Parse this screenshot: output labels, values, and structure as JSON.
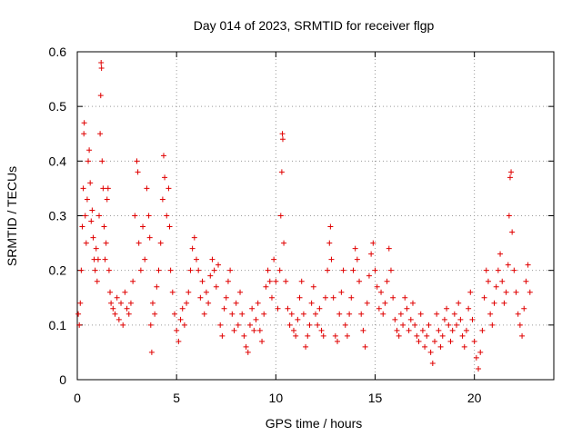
{
  "chart_data": {
    "type": "scatter",
    "title": "Day 014 of 2023, SRMTID for receiver flgp",
    "xlabel": "GPS time / hours",
    "ylabel": "SRMTID / TECUs",
    "xlim": [
      0,
      24
    ],
    "ylim": [
      0,
      0.6
    ],
    "xticks": [
      0,
      5,
      10,
      15,
      20
    ],
    "xtick_labels": [
      "0",
      "5",
      "10",
      "15",
      "20"
    ],
    "yticks": [
      0,
      0.1,
      0.2,
      0.3,
      0.4,
      0.5,
      0.6
    ],
    "ytick_labels": [
      "0",
      "0.1",
      "0.2",
      "0.3",
      "0.4",
      "0.5",
      "0.6"
    ],
    "grid": true,
    "marker": "+",
    "color": "#e00000",
    "series": [
      {
        "name": "SRMTID",
        "points": [
          [
            0.05,
            0.12
          ],
          [
            0.1,
            0.1
          ],
          [
            0.15,
            0.14
          ],
          [
            0.2,
            0.2
          ],
          [
            0.25,
            0.28
          ],
          [
            0.3,
            0.35
          ],
          [
            0.33,
            0.45
          ],
          [
            0.35,
            0.47
          ],
          [
            0.4,
            0.3
          ],
          [
            0.45,
            0.25
          ],
          [
            0.5,
            0.33
          ],
          [
            0.55,
            0.4
          ],
          [
            0.6,
            0.42
          ],
          [
            0.65,
            0.36
          ],
          [
            0.7,
            0.29
          ],
          [
            0.75,
            0.31
          ],
          [
            0.8,
            0.26
          ],
          [
            0.85,
            0.22
          ],
          [
            0.9,
            0.2
          ],
          [
            0.95,
            0.24
          ],
          [
            1.0,
            0.18
          ],
          [
            1.05,
            0.22
          ],
          [
            1.1,
            0.3
          ],
          [
            1.15,
            0.45
          ],
          [
            1.18,
            0.52
          ],
          [
            1.2,
            0.58
          ],
          [
            1.22,
            0.57
          ],
          [
            1.25,
            0.4
          ],
          [
            1.3,
            0.35
          ],
          [
            1.35,
            0.28
          ],
          [
            1.4,
            0.22
          ],
          [
            1.45,
            0.25
          ],
          [
            1.5,
            0.33
          ],
          [
            1.55,
            0.35
          ],
          [
            1.6,
            0.2
          ],
          [
            1.65,
            0.16
          ],
          [
            1.7,
            0.14
          ],
          [
            1.8,
            0.13
          ],
          [
            1.9,
            0.12
          ],
          [
            2.0,
            0.15
          ],
          [
            2.1,
            0.11
          ],
          [
            2.2,
            0.14
          ],
          [
            2.3,
            0.1
          ],
          [
            2.4,
            0.16
          ],
          [
            2.5,
            0.13
          ],
          [
            2.6,
            0.12
          ],
          [
            2.7,
            0.14
          ],
          [
            2.8,
            0.18
          ],
          [
            2.9,
            0.3
          ],
          [
            3.0,
            0.4
          ],
          [
            3.05,
            0.38
          ],
          [
            3.1,
            0.25
          ],
          [
            3.2,
            0.2
          ],
          [
            3.3,
            0.28
          ],
          [
            3.4,
            0.22
          ],
          [
            3.5,
            0.35
          ],
          [
            3.6,
            0.3
          ],
          [
            3.65,
            0.26
          ],
          [
            3.7,
            0.1
          ],
          [
            3.75,
            0.05
          ],
          [
            3.8,
            0.14
          ],
          [
            3.9,
            0.12
          ],
          [
            4.0,
            0.17
          ],
          [
            4.1,
            0.2
          ],
          [
            4.2,
            0.25
          ],
          [
            4.3,
            0.33
          ],
          [
            4.35,
            0.41
          ],
          [
            4.4,
            0.37
          ],
          [
            4.5,
            0.3
          ],
          [
            4.6,
            0.35
          ],
          [
            4.65,
            0.28
          ],
          [
            4.7,
            0.2
          ],
          [
            4.8,
            0.16
          ],
          [
            4.9,
            0.12
          ],
          [
            5.0,
            0.09
          ],
          [
            5.1,
            0.07
          ],
          [
            5.2,
            0.11
          ],
          [
            5.3,
            0.13
          ],
          [
            5.4,
            0.1
          ],
          [
            5.5,
            0.14
          ],
          [
            5.6,
            0.16
          ],
          [
            5.7,
            0.2
          ],
          [
            5.8,
            0.24
          ],
          [
            5.9,
            0.26
          ],
          [
            6.0,
            0.22
          ],
          [
            6.1,
            0.2
          ],
          [
            6.2,
            0.15
          ],
          [
            6.3,
            0.18
          ],
          [
            6.4,
            0.12
          ],
          [
            6.5,
            0.16
          ],
          [
            6.6,
            0.14
          ],
          [
            6.7,
            0.19
          ],
          [
            6.8,
            0.22
          ],
          [
            6.9,
            0.2
          ],
          [
            7.0,
            0.17
          ],
          [
            7.1,
            0.21
          ],
          [
            7.2,
            0.1
          ],
          [
            7.3,
            0.08
          ],
          [
            7.4,
            0.13
          ],
          [
            7.5,
            0.15
          ],
          [
            7.6,
            0.18
          ],
          [
            7.7,
            0.2
          ],
          [
            7.8,
            0.12
          ],
          [
            7.9,
            0.09
          ],
          [
            8.0,
            0.14
          ],
          [
            8.1,
            0.1
          ],
          [
            8.2,
            0.16
          ],
          [
            8.3,
            0.12
          ],
          [
            8.4,
            0.08
          ],
          [
            8.5,
            0.06
          ],
          [
            8.6,
            0.05
          ],
          [
            8.7,
            0.1
          ],
          [
            8.8,
            0.13
          ],
          [
            8.9,
            0.09
          ],
          [
            9.0,
            0.11
          ],
          [
            9.1,
            0.14
          ],
          [
            9.2,
            0.09
          ],
          [
            9.3,
            0.07
          ],
          [
            9.4,
            0.12
          ],
          [
            9.5,
            0.17
          ],
          [
            9.6,
            0.2
          ],
          [
            9.7,
            0.18
          ],
          [
            9.8,
            0.15
          ],
          [
            9.9,
            0.22
          ],
          [
            10.0,
            0.18
          ],
          [
            10.1,
            0.13
          ],
          [
            10.2,
            0.2
          ],
          [
            10.25,
            0.3
          ],
          [
            10.3,
            0.38
          ],
          [
            10.33,
            0.45
          ],
          [
            10.35,
            0.44
          ],
          [
            10.4,
            0.25
          ],
          [
            10.5,
            0.18
          ],
          [
            10.6,
            0.13
          ],
          [
            10.7,
            0.1
          ],
          [
            10.8,
            0.12
          ],
          [
            10.9,
            0.09
          ],
          [
            11.0,
            0.08
          ],
          [
            11.1,
            0.11
          ],
          [
            11.2,
            0.15
          ],
          [
            11.3,
            0.18
          ],
          [
            11.4,
            0.12
          ],
          [
            11.5,
            0.06
          ],
          [
            11.6,
            0.08
          ],
          [
            11.7,
            0.1
          ],
          [
            11.8,
            0.14
          ],
          [
            11.9,
            0.17
          ],
          [
            12.0,
            0.12
          ],
          [
            12.1,
            0.1
          ],
          [
            12.2,
            0.13
          ],
          [
            12.3,
            0.09
          ],
          [
            12.4,
            0.08
          ],
          [
            12.5,
            0.15
          ],
          [
            12.6,
            0.2
          ],
          [
            12.7,
            0.25
          ],
          [
            12.75,
            0.28
          ],
          [
            12.8,
            0.22
          ],
          [
            12.9,
            0.15
          ],
          [
            13.0,
            0.08
          ],
          [
            13.1,
            0.07
          ],
          [
            13.2,
            0.12
          ],
          [
            13.3,
            0.16
          ],
          [
            13.4,
            0.2
          ],
          [
            13.5,
            0.1
          ],
          [
            13.6,
            0.08
          ],
          [
            13.7,
            0.12
          ],
          [
            13.8,
            0.15
          ],
          [
            13.9,
            0.2
          ],
          [
            14.0,
            0.24
          ],
          [
            14.1,
            0.22
          ],
          [
            14.2,
            0.18
          ],
          [
            14.3,
            0.12
          ],
          [
            14.4,
            0.09
          ],
          [
            14.5,
            0.06
          ],
          [
            14.6,
            0.14
          ],
          [
            14.7,
            0.19
          ],
          [
            14.8,
            0.23
          ],
          [
            14.9,
            0.25
          ],
          [
            15.0,
            0.2
          ],
          [
            15.1,
            0.17
          ],
          [
            15.2,
            0.13
          ],
          [
            15.3,
            0.16
          ],
          [
            15.4,
            0.12
          ],
          [
            15.5,
            0.14
          ],
          [
            15.6,
            0.18
          ],
          [
            15.7,
            0.24
          ],
          [
            15.8,
            0.2
          ],
          [
            15.9,
            0.15
          ],
          [
            16.0,
            0.11
          ],
          [
            16.1,
            0.09
          ],
          [
            16.2,
            0.08
          ],
          [
            16.3,
            0.12
          ],
          [
            16.4,
            0.1
          ],
          [
            16.5,
            0.15
          ],
          [
            16.6,
            0.13
          ],
          [
            16.7,
            0.09
          ],
          [
            16.8,
            0.11
          ],
          [
            16.9,
            0.14
          ],
          [
            17.0,
            0.1
          ],
          [
            17.1,
            0.08
          ],
          [
            17.2,
            0.07
          ],
          [
            17.3,
            0.12
          ],
          [
            17.4,
            0.09
          ],
          [
            17.5,
            0.06
          ],
          [
            17.6,
            0.08
          ],
          [
            17.7,
            0.1
          ],
          [
            17.8,
            0.05
          ],
          [
            17.9,
            0.03
          ],
          [
            18.0,
            0.07
          ],
          [
            18.1,
            0.12
          ],
          [
            18.2,
            0.09
          ],
          [
            18.3,
            0.06
          ],
          [
            18.4,
            0.08
          ],
          [
            18.5,
            0.11
          ],
          [
            18.6,
            0.13
          ],
          [
            18.7,
            0.1
          ],
          [
            18.8,
            0.07
          ],
          [
            18.9,
            0.09
          ],
          [
            19.0,
            0.12
          ],
          [
            19.1,
            0.1
          ],
          [
            19.2,
            0.14
          ],
          [
            19.3,
            0.11
          ],
          [
            19.4,
            0.08
          ],
          [
            19.5,
            0.06
          ],
          [
            19.6,
            0.09
          ],
          [
            19.7,
            0.13
          ],
          [
            19.8,
            0.16
          ],
          [
            19.9,
            0.11
          ],
          [
            20.0,
            0.07
          ],
          [
            20.1,
            0.04
          ],
          [
            20.2,
            0.02
          ],
          [
            20.3,
            0.05
          ],
          [
            20.4,
            0.09
          ],
          [
            20.5,
            0.15
          ],
          [
            20.6,
            0.2
          ],
          [
            20.7,
            0.18
          ],
          [
            20.8,
            0.12
          ],
          [
            20.9,
            0.1
          ],
          [
            21.0,
            0.14
          ],
          [
            21.1,
            0.17
          ],
          [
            21.2,
            0.2
          ],
          [
            21.3,
            0.23
          ],
          [
            21.4,
            0.18
          ],
          [
            21.5,
            0.14
          ],
          [
            21.6,
            0.16
          ],
          [
            21.7,
            0.21
          ],
          [
            21.75,
            0.3
          ],
          [
            21.8,
            0.37
          ],
          [
            21.85,
            0.38
          ],
          [
            21.9,
            0.27
          ],
          [
            22.0,
            0.2
          ],
          [
            22.1,
            0.16
          ],
          [
            22.2,
            0.12
          ],
          [
            22.3,
            0.1
          ],
          [
            22.4,
            0.08
          ],
          [
            22.5,
            0.13
          ],
          [
            22.6,
            0.18
          ],
          [
            22.7,
            0.21
          ],
          [
            22.8,
            0.16
          ]
        ]
      }
    ]
  }
}
